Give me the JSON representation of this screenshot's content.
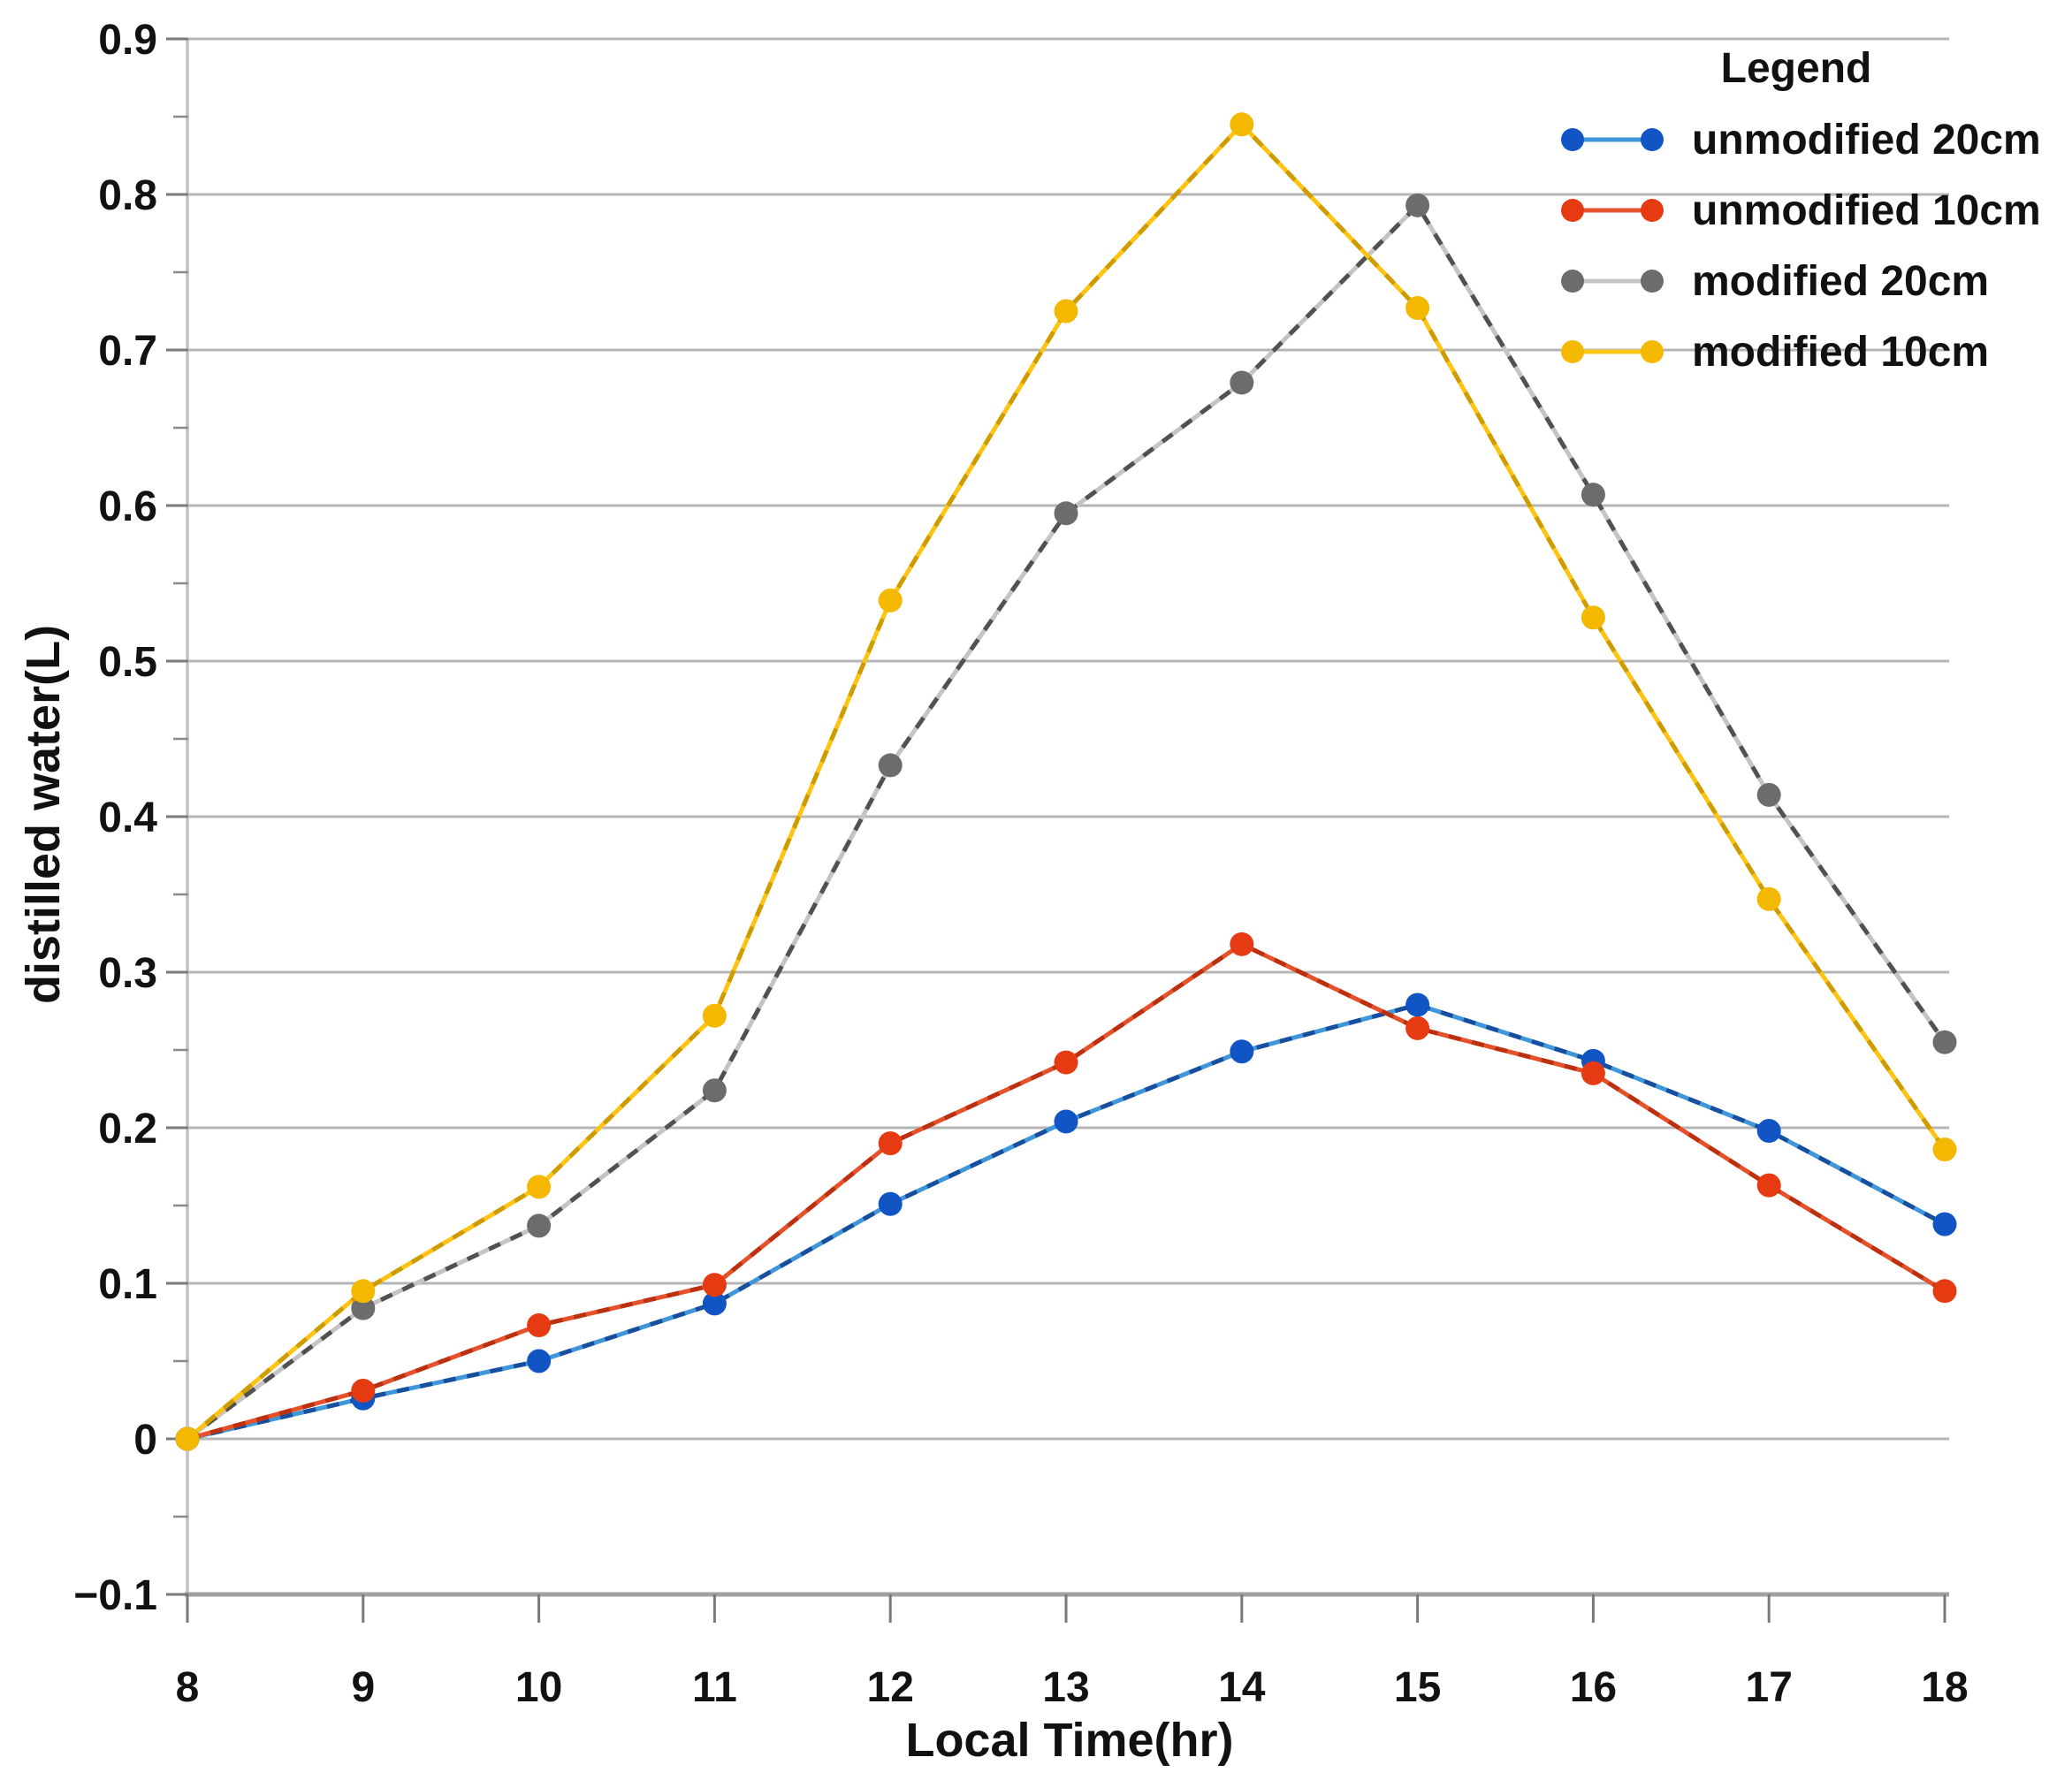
{
  "figure": {
    "y_axis_title": "distilled water(L)",
    "x_axis_title": "Local Time(hr)",
    "legend_title": "Legend"
  },
  "chart_data": {
    "type": "line",
    "title": "",
    "xlabel": "Local Time(hr)",
    "ylabel": "distilled water(L)",
    "x": [
      8,
      9,
      10,
      11,
      12,
      13,
      14,
      15,
      16,
      17,
      18
    ],
    "xlim": [
      8,
      18
    ],
    "ylim": [
      -0.1,
      0.9
    ],
    "grid": true,
    "legend_position": "top-right",
    "xticks": [
      "8",
      "9",
      "10",
      "11",
      "12",
      "13",
      "14",
      "15",
      "16",
      "17",
      "18"
    ],
    "yticks": [
      {
        "v": 0.9,
        "label": "0.9"
      },
      {
        "v": 0.8,
        "label": "0.8"
      },
      {
        "v": 0.7,
        "label": "0.7"
      },
      {
        "v": 0.6,
        "label": "0.6"
      },
      {
        "v": 0.5,
        "label": "0.5"
      },
      {
        "v": 0.4,
        "label": "0.4"
      },
      {
        "v": 0.3,
        "label": "0.3"
      },
      {
        "v": 0.2,
        "label": "0.2"
      },
      {
        "v": 0.1,
        "label": "0.1"
      },
      {
        "v": 0.0,
        "label": "0"
      },
      {
        "v": -0.1,
        "label": "−0.1"
      }
    ],
    "series": [
      {
        "name": "unmodified 20cm",
        "marker_color": "#1155c4",
        "line_color": "#3f97d9",
        "dash_color": "#174f9e",
        "values": [
          0.0,
          0.026,
          0.05,
          0.087,
          0.151,
          0.204,
          0.249,
          0.279,
          0.243,
          0.198,
          0.138
        ]
      },
      {
        "name": "unmodified 10cm",
        "marker_color": "#e63a12",
        "line_color": "#e4512b",
        "dash_color": "#bb3110",
        "values": [
          0.0,
          0.031,
          0.073,
          0.099,
          0.19,
          0.242,
          0.318,
          0.264,
          0.235,
          0.163,
          0.095
        ]
      },
      {
        "name": "modified 20cm",
        "marker_color": "#6c6c6c",
        "line_color": "#c4c4c4",
        "dash_color": "#515151",
        "values": [
          0.0,
          0.084,
          0.137,
          0.224,
          0.433,
          0.595,
          0.679,
          0.793,
          0.607,
          0.414,
          0.255
        ]
      },
      {
        "name": "modified 10cm",
        "marker_color": "#f5b800",
        "line_color": "#ffc413",
        "dash_color": "#cf9c00",
        "values": [
          0.0,
          0.095,
          0.162,
          0.272,
          0.539,
          0.725,
          0.845,
          0.727,
          0.528,
          0.347,
          0.186
        ]
      }
    ]
  }
}
